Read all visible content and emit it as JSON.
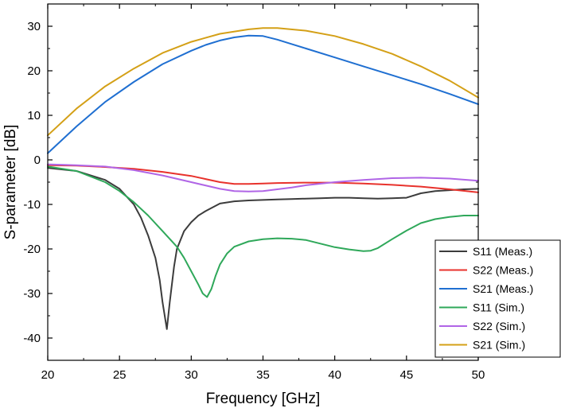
{
  "chart_data": {
    "type": "line",
    "xlabel": "Frequency [GHz]",
    "ylabel": "S-parameter [dB]",
    "xlim": [
      20,
      50
    ],
    "ylim": [
      -45,
      35
    ],
    "xticks": [
      20,
      25,
      30,
      35,
      40,
      45,
      50
    ],
    "yticks": [
      -40,
      -30,
      -20,
      -10,
      0,
      10,
      20,
      30
    ],
    "grid": false,
    "legend_position": "bottom-right",
    "series": [
      {
        "name": "S11 (Meas.)",
        "color": "#3c3c3c",
        "x": [
          20,
          22,
          24,
          25,
          26,
          26.5,
          27,
          27.5,
          27.8,
          28,
          28.2,
          28.3,
          28.5,
          28.8,
          29,
          29.5,
          30,
          30.5,
          31,
          32,
          33,
          34,
          35,
          36,
          37,
          38,
          39,
          40,
          41,
          42,
          43,
          44,
          45,
          46,
          47,
          48,
          49,
          50
        ],
        "y": [
          -1.8,
          -2.5,
          -4.5,
          -6.5,
          -10,
          -13,
          -17,
          -22,
          -27,
          -32,
          -36,
          -38,
          -32,
          -24,
          -20,
          -16,
          -14,
          -12.5,
          -11.5,
          -9.8,
          -9.3,
          -9.1,
          -9.0,
          -8.9,
          -8.8,
          -8.7,
          -8.6,
          -8.5,
          -8.5,
          -8.6,
          -8.7,
          -8.6,
          -8.5,
          -7.5,
          -7.0,
          -6.8,
          -6.6,
          -6.5
        ]
      },
      {
        "name": "S22 (Meas.)",
        "color": "#e8322c",
        "x": [
          20,
          22,
          24,
          26,
          28,
          30,
          31,
          32,
          33,
          34,
          35,
          36,
          38,
          40,
          42,
          44,
          46,
          48,
          50
        ],
        "y": [
          -1.2,
          -1.3,
          -1.6,
          -2.0,
          -2.7,
          -3.6,
          -4.3,
          -5.0,
          -5.4,
          -5.4,
          -5.3,
          -5.2,
          -5.1,
          -5.1,
          -5.3,
          -5.6,
          -6.0,
          -6.6,
          -7.3
        ]
      },
      {
        "name": "S21 (Meas.)",
        "color": "#1f6fd1",
        "x": [
          20,
          22,
          24,
          26,
          28,
          30,
          31,
          32,
          33,
          34,
          35,
          36,
          37,
          38,
          40,
          42,
          44,
          46,
          48,
          50
        ],
        "y": [
          1.5,
          7.5,
          13,
          17.5,
          21.5,
          24.5,
          25.8,
          26.8,
          27.5,
          27.9,
          27.8,
          27.0,
          26.0,
          25.0,
          23.0,
          21.0,
          19.0,
          17.0,
          14.8,
          12.5
        ]
      },
      {
        "name": "S11 (Sim.)",
        "color": "#2fa85a",
        "x": [
          20,
          22,
          24,
          25,
          26,
          27,
          28,
          29,
          29.5,
          30,
          30.5,
          30.8,
          31.1,
          31.4,
          31.7,
          32,
          32.5,
          33,
          34,
          35,
          36,
          37,
          38,
          39,
          40,
          41,
          42,
          42.5,
          43,
          44,
          45,
          46,
          47,
          48,
          49,
          50
        ],
        "y": [
          -1.5,
          -2.5,
          -5,
          -7,
          -9.5,
          -12.5,
          -16,
          -19.5,
          -22,
          -25,
          -28,
          -30,
          -30.8,
          -29,
          -26,
          -23.5,
          -21,
          -19.5,
          -18.3,
          -17.8,
          -17.6,
          -17.7,
          -18.0,
          -18.8,
          -19.6,
          -20.1,
          -20.5,
          -20.4,
          -19.8,
          -17.8,
          -15.9,
          -14.2,
          -13.3,
          -12.8,
          -12.5,
          -12.5
        ]
      },
      {
        "name": "S22 (Sim.)",
        "color": "#b065e6",
        "x": [
          20,
          22,
          24,
          26,
          28,
          30,
          32,
          33,
          34,
          35,
          36,
          37,
          38,
          40,
          42,
          44,
          46,
          48,
          50
        ],
        "y": [
          -1.0,
          -1.2,
          -1.5,
          -2.3,
          -3.5,
          -5.0,
          -6.5,
          -7.0,
          -7.1,
          -7.0,
          -6.6,
          -6.2,
          -5.7,
          -5.0,
          -4.5,
          -4.1,
          -4.0,
          -4.2,
          -4.7
        ]
      },
      {
        "name": "S21 (Sim.)",
        "color": "#d4a017",
        "x": [
          20,
          22,
          24,
          26,
          28,
          30,
          32,
          34,
          35,
          36,
          38,
          40,
          42,
          44,
          46,
          48,
          50
        ],
        "y": [
          5.5,
          11.5,
          16.5,
          20.5,
          24.0,
          26.5,
          28.3,
          29.3,
          29.6,
          29.6,
          29.0,
          27.8,
          26.0,
          23.8,
          21.0,
          17.8,
          14.0
        ]
      }
    ]
  }
}
